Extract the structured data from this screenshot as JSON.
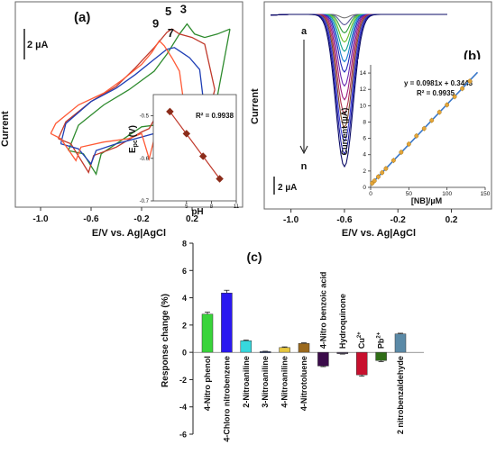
{
  "chart_data": [
    {
      "type": "line",
      "panel_label": "(a)",
      "xlabel": "E/V vs. Ag|AgCl",
      "ylabel": "Current",
      "xlim": [
        -1.2,
        0.6
      ],
      "x_ticks": [
        "-1.0",
        "-0.6",
        "-0.2",
        "0.2"
      ],
      "x_tick_values": [
        -1.0,
        -0.6,
        -0.2,
        0.2
      ],
      "scale_bar": "2 µA",
      "series": [
        {
          "name": "3",
          "color": "#2e8b2e",
          "forward": [
            [
              -0.78,
              -3.6
            ],
            [
              -0.66,
              -3.8
            ],
            [
              -0.56,
              -5.0
            ],
            [
              -0.52,
              -3.8
            ],
            [
              -0.4,
              -3.2
            ],
            [
              -0.2,
              -2.2
            ],
            [
              -0.1,
              -2.1
            ],
            [
              -0.02,
              -0.6
            ],
            [
              0.02,
              -0.8
            ],
            [
              0.1,
              -1.2
            ],
            [
              0.2,
              -1.4
            ],
            [
              0.3,
              -1.4
            ],
            [
              0.4,
              -0.4
            ],
            [
              0.5,
              3.6
            ]
          ],
          "reverse": [
            [
              0.5,
              3.6
            ],
            [
              0.4,
              3.3
            ],
            [
              0.3,
              3.1
            ],
            [
              0.22,
              3.3
            ],
            [
              0.16,
              3.9
            ],
            [
              0.1,
              3.3
            ],
            [
              0.0,
              2.1
            ],
            [
              -0.1,
              1.1
            ],
            [
              -0.3,
              0.0
            ],
            [
              -0.5,
              -0.9
            ],
            [
              -0.7,
              -2.1
            ],
            [
              -0.78,
              -3.6
            ]
          ]
        },
        {
          "name": "5",
          "color": "#c0392b",
          "forward": [
            [
              -0.86,
              -2.9
            ],
            [
              -0.76,
              -3.2
            ],
            [
              -0.62,
              -4.9
            ],
            [
              -0.58,
              -3.9
            ],
            [
              -0.4,
              -3.4
            ],
            [
              -0.2,
              -2.5
            ],
            [
              -0.14,
              -2.3
            ],
            [
              -0.08,
              -1.5
            ],
            [
              0.02,
              -1.7
            ],
            [
              0.12,
              -2.0
            ],
            [
              0.24,
              -1.7
            ],
            [
              0.34,
              -1.1
            ],
            [
              0.38,
              0.0
            ]
          ],
          "reverse": [
            [
              0.38,
              0.0
            ],
            [
              0.3,
              2.7
            ],
            [
              0.2,
              3.1
            ],
            [
              0.1,
              3.3
            ],
            [
              0.04,
              3.6
            ],
            [
              0.0,
              3.4
            ],
            [
              -0.1,
              2.5
            ],
            [
              -0.25,
              1.3
            ],
            [
              -0.4,
              0.2
            ],
            [
              -0.6,
              -0.7
            ],
            [
              -0.8,
              -1.9
            ],
            [
              -0.86,
              -2.9
            ]
          ]
        },
        {
          "name": "7",
          "color": "#1f3fb5",
          "forward": [
            [
              -0.84,
              -3.2
            ],
            [
              -0.7,
              -3.5
            ],
            [
              -0.6,
              -4.4
            ],
            [
              -0.56,
              -3.6
            ],
            [
              -0.4,
              -3.2
            ],
            [
              -0.2,
              -2.8
            ],
            [
              -0.1,
              -2.6
            ],
            [
              -0.04,
              -2.0
            ],
            [
              0.04,
              -2.2
            ],
            [
              0.14,
              -2.4
            ],
            [
              0.24,
              -2.3
            ],
            [
              0.3,
              -1.3
            ]
          ],
          "reverse": [
            [
              0.3,
              -1.3
            ],
            [
              0.26,
              1.2
            ],
            [
              0.18,
              1.9
            ],
            [
              0.12,
              2.2
            ],
            [
              0.06,
              2.5
            ],
            [
              0.0,
              2.4
            ],
            [
              -0.1,
              1.8
            ],
            [
              -0.25,
              0.9
            ],
            [
              -0.4,
              0.1
            ],
            [
              -0.6,
              -0.7
            ],
            [
              -0.8,
              -2.0
            ],
            [
              -0.84,
              -3.2
            ]
          ]
        },
        {
          "name": "9",
          "color": "#ff5a36",
          "forward": [
            [
              -0.92,
              -2.6
            ],
            [
              -0.84,
              -2.9
            ],
            [
              -0.72,
              -4.2
            ],
            [
              -0.68,
              -3.4
            ],
            [
              -0.5,
              -3.1
            ],
            [
              -0.3,
              -2.9
            ],
            [
              -0.2,
              -2.6
            ],
            [
              -0.14,
              -4.1
            ],
            [
              -0.08,
              -2.3
            ],
            [
              0.0,
              -2.3
            ],
            [
              0.1,
              -2.0
            ],
            [
              0.14,
              -1.1
            ]
          ],
          "reverse": [
            [
              0.14,
              -1.1
            ],
            [
              0.1,
              1.1
            ],
            [
              0.04,
              1.9
            ],
            [
              -0.02,
              2.6
            ],
            [
              -0.06,
              2.9
            ],
            [
              -0.12,
              2.2
            ],
            [
              -0.2,
              1.5
            ],
            [
              -0.35,
              0.6
            ],
            [
              -0.5,
              -0.2
            ],
            [
              -0.7,
              -0.9
            ],
            [
              -0.88,
              -2.0
            ],
            [
              -0.92,
              -2.6
            ]
          ]
        }
      ],
      "inset": {
        "type": "scatter",
        "xlabel": "pH",
        "ylabel": "E",
        "ylabel_sub": "pc",
        "ylabel_unit": " (V)",
        "annotation": "R² = 0.9938",
        "xlim": [
          1,
          11
        ],
        "ylim": [
          -0.7,
          -0.45
        ],
        "x_ticks": [
          "5",
          "8",
          "11"
        ],
        "x_tick_values": [
          5,
          8,
          11
        ],
        "y_ticks": [
          "-0.5",
          "-0.6",
          "-0.7"
        ],
        "y_tick_values": [
          -0.5,
          -0.6,
          -0.7
        ],
        "x": [
          3,
          5,
          7,
          9
        ],
        "y": [
          -0.49,
          -0.542,
          -0.595,
          -0.648
        ],
        "fit": [
          [
            3,
            -0.49
          ],
          [
            9,
            -0.648
          ]
        ]
      }
    },
    {
      "type": "line",
      "panel_label": "(b)",
      "xlabel": "E/V vs. Ag|AgCl",
      "ylabel": "Current",
      "xlim": [
        -1.2,
        0.5
      ],
      "x_ticks": [
        "-1.0",
        "-0.6",
        "-0.2",
        "0.2"
      ],
      "x_tick_values": [
        -1.0,
        -0.6,
        -0.2,
        0.2
      ],
      "scale_bar": "2 µA",
      "arrow_start": "a",
      "arrow_end": "n",
      "peak_potential": -0.6,
      "peak_depths": [
        0.3,
        0.9,
        1.6,
        2.4,
        3.2,
        4.1,
        5.0,
        6.2,
        7.4,
        8.6,
        9.8,
        11.0,
        12.1,
        13.2
      ],
      "series_colors": [
        "#777777",
        "#5a5a9a",
        "#2e9e3e",
        "#6fbf2a",
        "#12a38d",
        "#1a7fd1",
        "#202ab8",
        "#6a2cb0",
        "#9b1d7e",
        "#b0334d",
        "#7a4a2a",
        "#3d3dd6",
        "#1b1b9f",
        "#0b0b66"
      ],
      "inset": {
        "type": "scatter",
        "xlabel": "[NB]/µM",
        "ylabel": "Current (µA)",
        "equation": "y = 0.0981x + 0.3443",
        "annotation": "R² = 0.9935",
        "xlim": [
          0,
          150
        ],
        "ylim": [
          0,
          15
        ],
        "x_ticks": [
          "0",
          "50",
          "100",
          "150"
        ],
        "x_tick_values": [
          0,
          50,
          100,
          150
        ],
        "y_ticks": [
          "0",
          "2",
          "4",
          "6",
          "8",
          "10",
          "12",
          "14"
        ],
        "y_tick_values": [
          0,
          2,
          4,
          6,
          8,
          10,
          12,
          14
        ],
        "x": [
          2,
          5,
          10,
          15,
          20,
          30,
          40,
          50,
          60,
          70,
          80,
          90,
          100,
          110,
          120,
          130
        ],
        "y": [
          0.5,
          0.8,
          1.3,
          1.8,
          2.3,
          3.3,
          4.3,
          5.3,
          6.3,
          7.2,
          8.2,
          9.2,
          10.1,
          11.1,
          12.1,
          13.0
        ],
        "fit": [
          [
            0,
            0.3443
          ],
          [
            140,
            14.08
          ]
        ]
      }
    },
    {
      "type": "bar",
      "panel_label": "(c)",
      "ylabel": "Response change (%)",
      "ylim": [
        -6,
        8
      ],
      "y_ticks": [
        "8",
        "6",
        "4",
        "2",
        "0",
        "-2",
        "-4",
        "-6"
      ],
      "y_tick_values": [
        8,
        6,
        4,
        2,
        0,
        -2,
        -4,
        -6
      ],
      "categories": [
        "4-Nitro phenol",
        "4-Chloro nitrobenzene",
        "2-Nitroaniline",
        "3-Nitroaniline",
        "4-Nitroaniline",
        "4-Nitrotoluene",
        "4-Nitro benzoic acid",
        "Hydroquinone",
        "Cu",
        "Pb",
        "2 nitrobenzaldehyde"
      ],
      "category_superscripts": [
        "",
        "",
        "",
        "",
        "",
        "",
        "",
        "",
        "2+",
        "2+",
        ""
      ],
      "category_label_side": [
        "below",
        "below",
        "below",
        "below",
        "below",
        "below",
        "above",
        "above",
        "above",
        "above",
        "below"
      ],
      "values": [
        2.8,
        4.35,
        0.85,
        0.05,
        0.35,
        0.65,
        -1.0,
        -0.1,
        -1.65,
        -0.6,
        1.35
      ],
      "errors": [
        0.15,
        0.2,
        0.05,
        0.03,
        0.05,
        0.05,
        0.05,
        0.03,
        0.1,
        0.08,
        0.05
      ],
      "colors": [
        "#39d43b",
        "#2a18f0",
        "#37d8dd",
        "#1a2e6b",
        "#e8c840",
        "#9b6a1e",
        "#3b0b4a",
        "#5a4c6c",
        "#c8102e",
        "#2f6d17",
        "#5b8aa7"
      ]
    }
  ]
}
